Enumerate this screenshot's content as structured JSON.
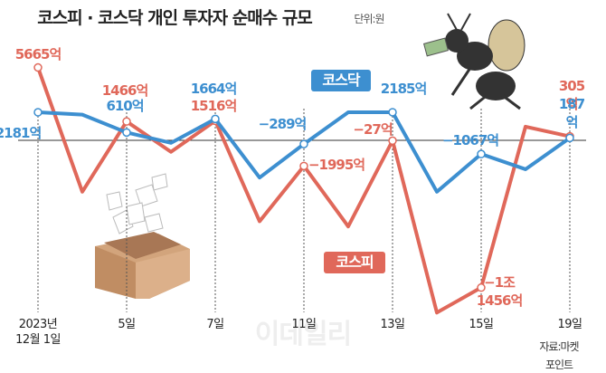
{
  "chart_data": {
    "type": "line",
    "title": "코스피 · 코스닥 개인 투자자 순매수 규모",
    "subtitle": "단위:원",
    "source": "자료:마켓포인트",
    "watermark": "이데일리",
    "categories": [
      "2023년\n12월 1일",
      null,
      "5일",
      null,
      "7일",
      null,
      "11일",
      null,
      "13일",
      null,
      "15일",
      null,
      "19일"
    ],
    "ylim": [
      -15000,
      6500
    ],
    "series": [
      {
        "name": "코스피",
        "color": "#e0685a",
        "values": [
          5665,
          -4000,
          1466,
          -900,
          1516,
          -6300,
          -1995,
          -6700,
          -27,
          -13400,
          -11456,
          1060,
          305
        ],
        "value_labels": [
          "5665억",
          null,
          "1466억",
          null,
          "1516억",
          null,
          "−1995억",
          null,
          "−27억",
          null,
          "−1조\n1456억",
          null,
          "305억"
        ]
      },
      {
        "name": "코스닥",
        "color": "#3d8fd0",
        "values": [
          2181,
          2000,
          610,
          -200,
          1664,
          -2900,
          -289,
          2180,
          2185,
          -4000,
          -1067,
          -2250,
          187
        ],
        "value_labels": [
          "2181억",
          null,
          "610억",
          null,
          "1664억",
          null,
          "−289억",
          null,
          "2185억",
          null,
          "−1067억",
          null,
          "187억"
        ]
      }
    ]
  }
}
